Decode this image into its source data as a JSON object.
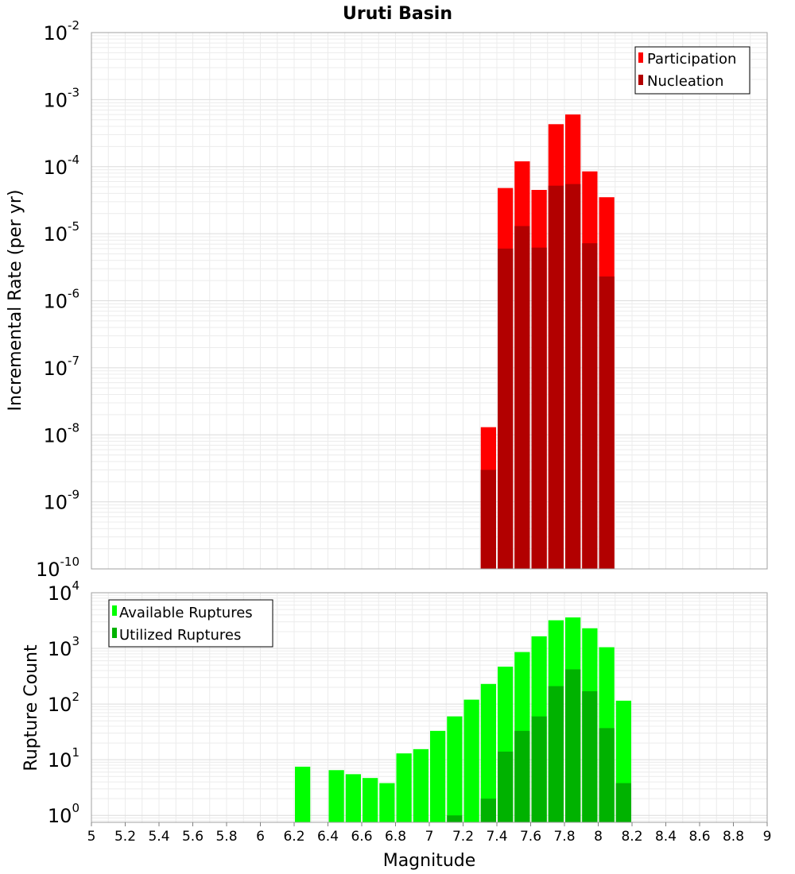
{
  "chart_data": [
    {
      "type": "bar",
      "title": "Uruti Basin",
      "xlabel": "",
      "ylabel": "Incremental Rate (per yr)",
      "yscale": "log",
      "ylim": [
        1e-10,
        0.01
      ],
      "xlim": [
        5,
        9
      ],
      "bin_width": 0.1,
      "x": [
        7.35,
        7.45,
        7.55,
        7.65,
        7.75,
        7.85,
        7.95,
        8.05
      ],
      "grid": true,
      "legend_position": "top-right",
      "series": [
        {
          "name": "Participation",
          "color": "#ff0000",
          "values": [
            1.3e-08,
            4.8e-05,
            0.00012,
            4.5e-05,
            0.00043,
            0.0006,
            8.5e-05,
            3.5e-05
          ]
        },
        {
          "name": "Nucleation",
          "color": "#b20000",
          "values": [
            3e-09,
            6e-06,
            1.3e-05,
            6.2e-06,
            5.2e-05,
            5.5e-05,
            7.2e-06,
            2.3e-06
          ]
        }
      ],
      "yticks": [
        {
          "base": "10",
          "exp": "-10"
        },
        {
          "base": "10",
          "exp": "-9"
        },
        {
          "base": "10",
          "exp": "-8"
        },
        {
          "base": "10",
          "exp": "-7"
        },
        {
          "base": "10",
          "exp": "-6"
        },
        {
          "base": "10",
          "exp": "-5"
        },
        {
          "base": "10",
          "exp": "-4"
        },
        {
          "base": "10",
          "exp": "-3"
        },
        {
          "base": "10",
          "exp": "-2"
        }
      ]
    },
    {
      "type": "bar",
      "title": "",
      "xlabel": "Magnitude",
      "ylabel": "Rupture Count",
      "yscale": "log",
      "ylim": [
        0.75,
        10000.0
      ],
      "xlim": [
        5,
        9
      ],
      "bin_width": 0.1,
      "x": [
        6.25,
        6.35,
        6.45,
        6.55,
        6.65,
        6.75,
        6.85,
        6.95,
        7.05,
        7.15,
        7.25,
        7.35,
        7.45,
        7.55,
        7.65,
        7.75,
        7.85,
        7.95,
        8.05,
        8.15
      ],
      "grid": true,
      "legend_position": "top-left",
      "series": [
        {
          "name": "Available Ruptures",
          "color": "#00ff00",
          "values": [
            7.5,
            0,
            6.5,
            5.5,
            4.7,
            3.8,
            13,
            15.5,
            33,
            60,
            120,
            230,
            470,
            860,
            1650,
            3200,
            3600,
            2300,
            1050,
            115
          ]
        },
        {
          "name": "Utilized Ruptures",
          "color": "#00b200",
          "values": [
            0,
            0,
            0,
            0,
            0,
            0,
            0,
            0,
            0,
            1,
            0,
            2,
            14,
            33,
            60,
            210,
            420,
            170,
            37,
            3.8
          ]
        }
      ],
      "xticks": [
        "5",
        "5.2",
        "5.4",
        "5.6",
        "5.8",
        "6",
        "6.2",
        "6.4",
        "6.6",
        "6.8",
        "7",
        "7.2",
        "7.4",
        "7.6",
        "7.8",
        "8",
        "8.2",
        "8.4",
        "8.6",
        "8.8",
        "9"
      ],
      "yticks": [
        {
          "base": "10",
          "exp": "0"
        },
        {
          "base": "10",
          "exp": "1"
        },
        {
          "base": "10",
          "exp": "2"
        },
        {
          "base": "10",
          "exp": "3"
        },
        {
          "base": "10",
          "exp": "4"
        }
      ]
    }
  ]
}
